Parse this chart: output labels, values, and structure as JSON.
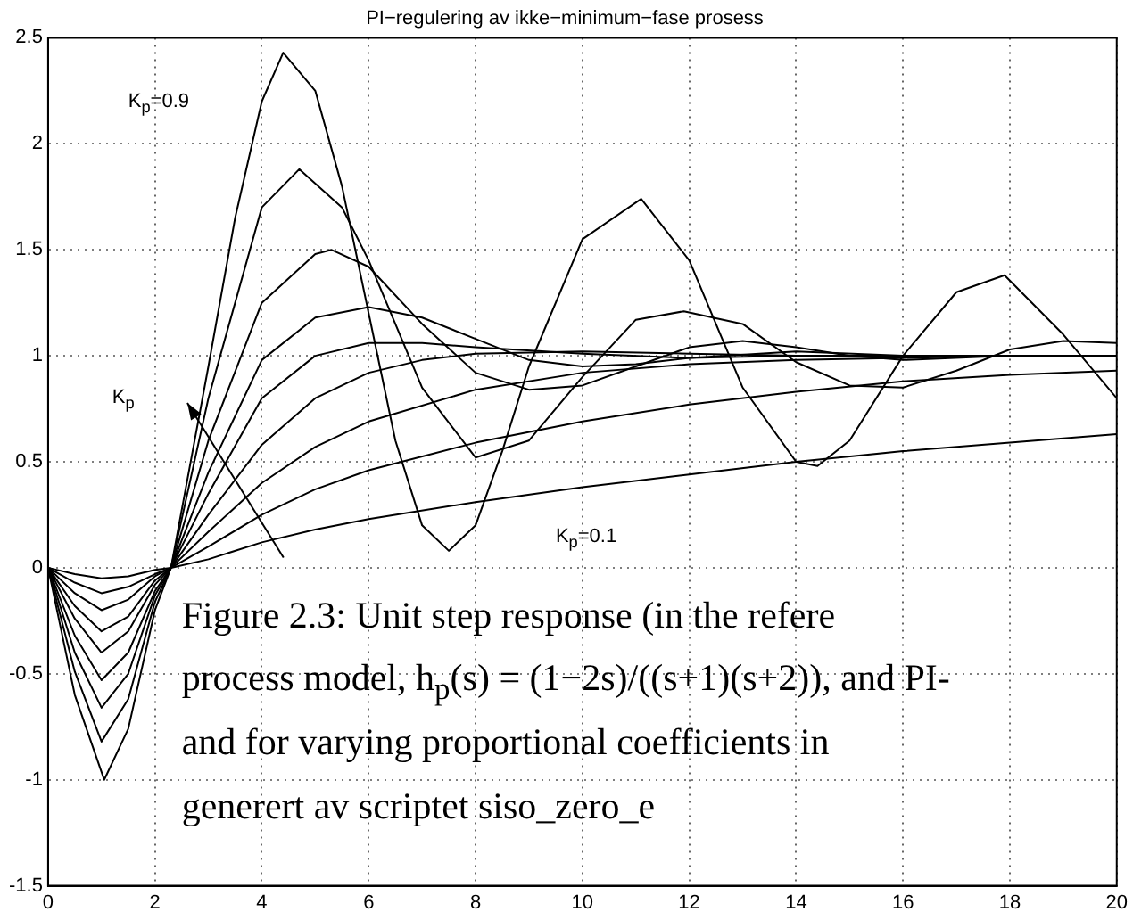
{
  "chart_data": {
    "type": "line",
    "title": "PI−regulering av ikke−minimum−fase prosess",
    "xlim": [
      0,
      20
    ],
    "xticks": [
      0,
      2,
      4,
      6,
      8,
      10,
      12,
      14,
      16,
      18,
      20
    ],
    "ylim": [
      -1.5,
      2.5
    ],
    "yticks": [
      -1.5,
      -1,
      -0.5,
      0,
      0.5,
      1,
      1.5,
      2,
      2.5
    ],
    "grid": true,
    "legend": false,
    "marker": "none",
    "line_style": "solid",
    "series": [
      {
        "color": "#000000",
        "x": [
          0,
          0.5,
          1,
          1.5,
          2,
          2.3,
          3,
          4,
          5,
          6,
          8,
          10,
          12,
          14,
          16,
          18,
          20
        ],
        "values": [
          0,
          -0.03,
          -0.05,
          -0.04,
          -0.01,
          0,
          0.04,
          0.12,
          0.18,
          0.23,
          0.31,
          0.38,
          0.44,
          0.5,
          0.55,
          0.59,
          0.63
        ]
      },
      {
        "color": "#000000",
        "x": [
          0,
          0.5,
          1,
          1.5,
          2,
          2.3,
          3,
          4,
          5,
          6,
          8,
          10,
          12,
          14,
          16,
          18,
          20
        ],
        "values": [
          0,
          -0.07,
          -0.12,
          -0.09,
          -0.03,
          0,
          0.1,
          0.25,
          0.37,
          0.46,
          0.59,
          0.69,
          0.77,
          0.83,
          0.88,
          0.91,
          0.93
        ]
      },
      {
        "color": "#000000",
        "x": [
          0,
          0.5,
          1,
          1.5,
          2,
          2.3,
          3,
          4,
          5,
          6,
          8,
          10,
          12,
          14,
          16,
          18,
          20
        ],
        "values": [
          0,
          -0.12,
          -0.2,
          -0.15,
          -0.04,
          0,
          0.17,
          0.4,
          0.57,
          0.69,
          0.84,
          0.92,
          0.96,
          0.98,
          0.99,
          1,
          1
        ]
      },
      {
        "color": "#000000",
        "x": [
          0,
          0.5,
          1,
          1.5,
          2,
          2.3,
          3,
          4,
          5,
          6,
          7,
          8,
          10,
          12,
          14,
          16,
          18,
          20
        ],
        "values": [
          0,
          -0.18,
          -0.3,
          -0.23,
          -0.06,
          0,
          0.25,
          0.58,
          0.8,
          0.92,
          0.98,
          1.01,
          1.02,
          1.01,
          1,
          1,
          1,
          1
        ]
      },
      {
        "color": "#000000",
        "x": [
          0,
          0.5,
          1,
          1.5,
          2,
          2.3,
          3,
          4,
          5,
          6,
          7,
          8,
          10,
          12,
          14,
          16,
          18,
          20
        ],
        "values": [
          0,
          -0.24,
          -0.4,
          -0.3,
          -0.08,
          0,
          0.35,
          0.8,
          1,
          1.06,
          1.06,
          1.04,
          1.01,
          0.99,
          1,
          1,
          1,
          1
        ]
      },
      {
        "color": "#000000",
        "x": [
          0,
          0.5,
          1,
          1.5,
          2,
          2.3,
          3,
          4,
          5,
          6,
          7,
          8,
          9,
          10,
          11,
          12,
          14,
          16,
          18,
          20
        ],
        "values": [
          0,
          -0.32,
          -0.53,
          -0.4,
          -0.11,
          0,
          0.45,
          0.98,
          1.18,
          1.23,
          1.18,
          1.08,
          0.98,
          0.95,
          0.96,
          0.99,
          1.02,
          1,
          1,
          1
        ]
      },
      {
        "color": "#000000",
        "x": [
          0,
          0.5,
          1,
          1.5,
          2,
          2.3,
          3,
          4,
          5,
          5.3,
          6,
          7,
          8,
          9,
          10,
          11,
          12,
          13,
          14,
          15,
          16,
          18,
          20
        ],
        "values": [
          0,
          -0.4,
          -0.66,
          -0.5,
          -0.13,
          0,
          0.6,
          1.25,
          1.48,
          1.5,
          1.42,
          1.15,
          0.92,
          0.84,
          0.86,
          0.95,
          1.04,
          1.07,
          1.04,
          1,
          0.98,
          1,
          1
        ]
      },
      {
        "color": "#000000",
        "x": [
          0,
          0.5,
          1,
          1.5,
          2,
          2.3,
          3,
          4,
          4.7,
          5.5,
          6,
          7,
          8,
          9,
          10,
          11,
          11.9,
          13,
          14,
          15,
          16,
          17,
          18,
          19,
          20
        ],
        "values": [
          0,
          -0.49,
          -0.82,
          -0.62,
          -0.16,
          0,
          0.8,
          1.7,
          1.88,
          1.7,
          1.45,
          0.85,
          0.52,
          0.6,
          0.9,
          1.17,
          1.21,
          1.15,
          0.97,
          0.86,
          0.85,
          0.93,
          1.03,
          1.07,
          1.06
        ]
      },
      {
        "color": "#000000",
        "x": [
          0,
          0.5,
          1.05,
          1.5,
          2,
          2.3,
          3,
          3.5,
          4,
          4.4,
          5,
          5.5,
          6,
          6.5,
          7,
          7.5,
          8,
          8.5,
          9,
          10,
          11.1,
          12,
          13,
          14,
          14.4,
          15,
          16,
          17,
          17.9,
          19,
          20
        ],
        "values": [
          0,
          -0.6,
          -1,
          -0.76,
          -0.2,
          0,
          0.95,
          1.65,
          2.2,
          2.43,
          2.25,
          1.8,
          1.2,
          0.6,
          0.2,
          0.08,
          0.2,
          0.55,
          0.95,
          1.55,
          1.74,
          1.45,
          0.85,
          0.5,
          0.48,
          0.6,
          1,
          1.3,
          1.38,
          1.1,
          0.8
        ]
      }
    ],
    "annotations": [
      "K$_{p}$=0.9",
      "K$_{p}$",
      "K$_{p}$=0.1",
      "Figure 2.3: Unit step response (in the refere",
      "process model, h$_{p}$(s) = (1−2s)/((s+1)(s+2)), and PI-",
      "and for varying proportional coefficients in",
      "generert av scriptet siso_zero_e"
    ]
  }
}
